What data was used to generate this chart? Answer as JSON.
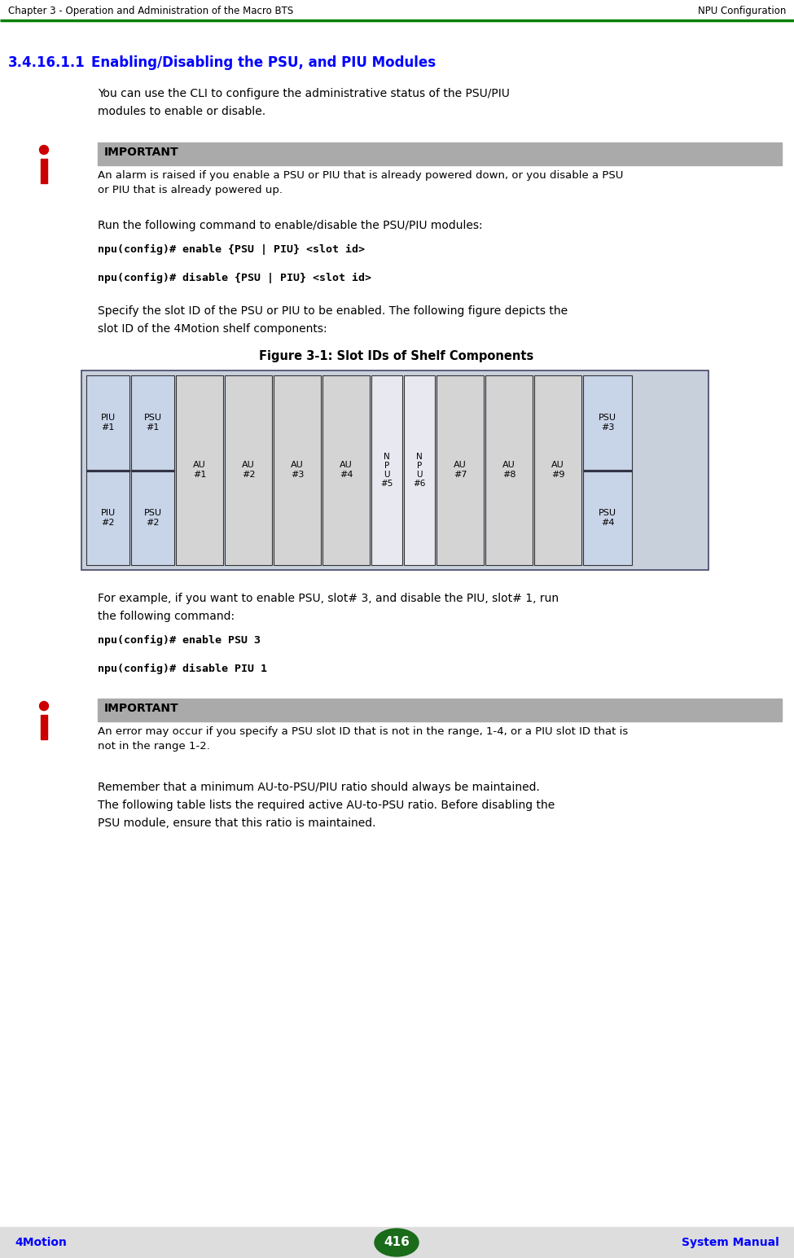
{
  "header_left": "Chapter 3 - Operation and Administration of the Macro BTS",
  "header_right": "NPU Configuration",
  "header_line_color": "#008000",
  "section_number": "3.4.16.1.1",
  "section_title": "Enabling/Disabling the PSU, and PIU Modules",
  "section_title_color": "#0000FF",
  "body_text_color": "#000000",
  "bg_color": "#FFFFFF",
  "footer_bg": "#DDDDDD",
  "footer_page": "416",
  "footer_left": "4Motion",
  "footer_right": "System Manual",
  "footer_text_color": "#0000FF",
  "footer_page_bg": "#1A6B1A",
  "important_header_bg": "#AAAAAA",
  "important_header_text": "IMPORTANT",
  "icon_color": "#CC0000",
  "para1_line1": "You can use the CLI to configure the administrative status of the PSU/PIU",
  "para1_line2": "modules to enable or disable.",
  "important1_text_line1": "An alarm is raised if you enable a PSU or PIU that is already powered down, or you disable a PSU",
  "important1_text_line2": "or PIU that is already powered up.",
  "para2": "Run the following command to enable/disable the PSU/PIU modules:",
  "cmd1": "npu(config)# enable {PSU | PIU} <slot id>",
  "cmd2": "npu(config)# disable {PSU | PIU} <slot id>",
  "para3_line1": "Specify the slot ID of the PSU or PIU to be enabled. The following figure depicts the",
  "para3_line2": "slot ID of the 4Motion shelf components:",
  "figure_title": "Figure 3-1: Slot IDs of Shelf Components",
  "para4_line1": "For example, if you want to enable PSU, slot# 3, and disable the PIU, slot# 1, run",
  "para4_line2": "the following command:",
  "cmd3": "npu(config)# enable PSU 3",
  "cmd4": "npu(config)# disable PIU 1",
  "important2_text_line1": "An error may occur if you specify a PSU slot ID that is not in the range, 1-4, or a PIU slot ID that is",
  "important2_text_line2": "not in the range 1-2.",
  "para5_line1": "Remember that a minimum AU-to-PSU/PIU ratio should always be maintained.",
  "para5_line2": "The following table lists the required active AU-to-PSU ratio. Before disabling the",
  "para5_line3": "PSU module, ensure that this ratio is maintained."
}
